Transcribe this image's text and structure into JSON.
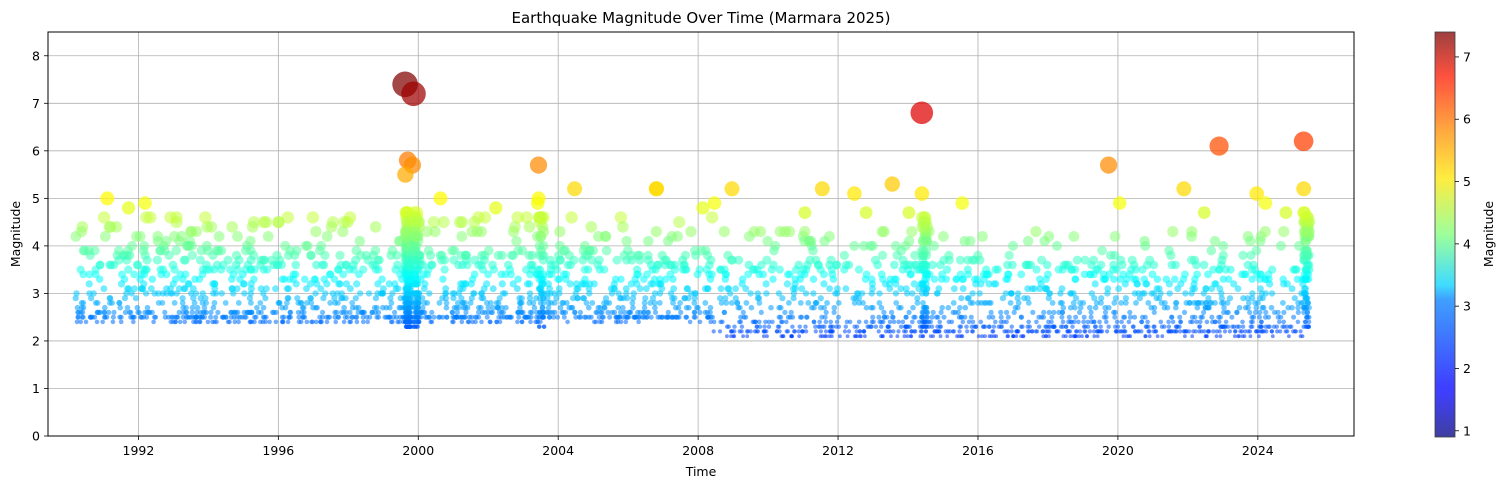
{
  "chart_data": {
    "type": "scatter",
    "title": "Earthquake Magnitude Over Time (Marmara 2025)",
    "xlabel": "Time",
    "ylabel": "Magnitude",
    "xlim": [
      "1989-06-01",
      "2026-10-01"
    ],
    "ylim": [
      0,
      8.5
    ],
    "x_ticks": [
      "1992",
      "1996",
      "2000",
      "2004",
      "2008",
      "2012",
      "2016",
      "2020",
      "2024"
    ],
    "y_ticks": [
      0,
      1,
      2,
      3,
      4,
      5,
      6,
      7,
      8
    ],
    "grid": true,
    "marker_size_encodes": "Magnitude",
    "colormap": "jet",
    "colorbar": {
      "label": "Magnitude",
      "range": [
        0.9,
        7.4
      ],
      "ticks": [
        1,
        2,
        3,
        4,
        5,
        6,
        7
      ]
    },
    "notable_events": [
      {
        "x": "1999-08-17",
        "y": 7.4
      },
      {
        "x": "1999-11-12",
        "y": 7.2
      },
      {
        "x": "2014-05-24",
        "y": 6.8
      },
      {
        "x": "2025-04-23",
        "y": 6.2
      },
      {
        "x": "2022-11-23",
        "y": 6.1
      },
      {
        "x": "1999-09-13",
        "y": 5.8
      },
      {
        "x": "1999-11-01",
        "y": 5.7
      },
      {
        "x": "2003-06-09",
        "y": 5.7
      },
      {
        "x": "2019-09-26",
        "y": 5.7
      },
      {
        "x": "1999-08-20",
        "y": 5.5
      },
      {
        "x": "2013-07-20",
        "y": 5.3
      },
      {
        "x": "2004-06-20",
        "y": 5.2
      },
      {
        "x": "2006-10-20",
        "y": 5.2
      },
      {
        "x": "2006-10-24",
        "y": 5.2
      },
      {
        "x": "2008-12-20",
        "y": 5.2
      },
      {
        "x": "2011-07-20",
        "y": 5.2
      },
      {
        "x": "2021-11-20",
        "y": 5.2
      },
      {
        "x": "2025-04-24",
        "y": 5.2
      },
      {
        "x": "2012-06-20",
        "y": 5.1
      },
      {
        "x": "2014-05-25",
        "y": 5.1
      },
      {
        "x": "2023-12-20",
        "y": 5.1
      },
      {
        "x": "1991-02-10",
        "y": 5.0
      },
      {
        "x": "2000-08-20",
        "y": 5.0
      },
      {
        "x": "2003-06-10",
        "y": 5.0
      },
      {
        "x": "1992-03-10",
        "y": 4.9
      },
      {
        "x": "2003-06-01",
        "y": 4.9
      },
      {
        "x": "2008-06-20",
        "y": 4.9
      },
      {
        "x": "2015-07-20",
        "y": 4.9
      },
      {
        "x": "2020-01-20",
        "y": 4.9
      },
      {
        "x": "2024-03-20",
        "y": 4.9
      },
      {
        "x": "1991-09-20",
        "y": 4.8
      },
      {
        "x": "2002-03-20",
        "y": 4.8
      },
      {
        "x": "2008-02-20",
        "y": 4.8
      },
      {
        "x": "2011-01-20",
        "y": 4.7
      },
      {
        "x": "2012-10-20",
        "y": 4.7
      },
      {
        "x": "2014-01-10",
        "y": 4.7
      },
      {
        "x": "2022-06-20",
        "y": 4.7
      },
      {
        "x": "2024-10-20",
        "y": 4.7
      },
      {
        "x": "2025-04-25",
        "y": 4.7
      }
    ]
  }
}
